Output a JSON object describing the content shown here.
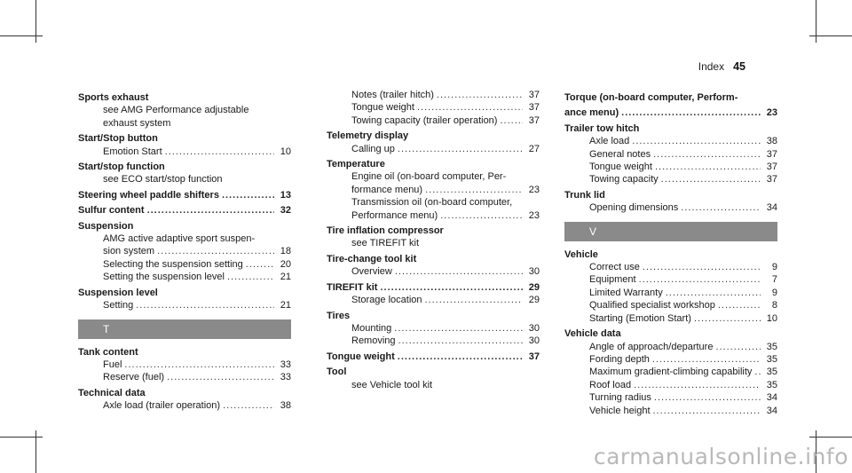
{
  "header": {
    "section": "Index",
    "page": "45"
  },
  "columns": [
    [
      {
        "kind": "head",
        "text": "Sports exhaust"
      },
      {
        "kind": "sub",
        "text": "see AMG Performance adjustable"
      },
      {
        "kind": "sub",
        "text": "exhaust system"
      },
      {
        "kind": "head",
        "text": "Start/Stop button"
      },
      {
        "kind": "subpage",
        "text": "Emotion Start",
        "page": "10"
      },
      {
        "kind": "head",
        "text": "Start/stop function"
      },
      {
        "kind": "sub",
        "text": "see ECO start/stop function"
      },
      {
        "kind": "headpage",
        "text": "Steering wheel paddle shifters",
        "page": "13"
      },
      {
        "kind": "headpage",
        "text": "Sulfur content",
        "page": "32"
      },
      {
        "kind": "head",
        "text": "Suspension"
      },
      {
        "kind": "sub",
        "text": "AMG active adaptive sport suspen-"
      },
      {
        "kind": "subpage",
        "text": "sion system",
        "page": "18"
      },
      {
        "kind": "subpage",
        "text": "Selecting the suspension setting",
        "page": "20"
      },
      {
        "kind": "subpage",
        "text": "Setting the suspension level",
        "page": "21"
      },
      {
        "kind": "head",
        "text": "Suspension level"
      },
      {
        "kind": "subpage",
        "text": "Setting",
        "page": "21"
      },
      {
        "kind": "letter",
        "text": "T"
      },
      {
        "kind": "head",
        "text": "Tank content"
      },
      {
        "kind": "subpage",
        "text": "Fuel",
        "page": "33"
      },
      {
        "kind": "subpage",
        "text": "Reserve (fuel)",
        "page": "33"
      },
      {
        "kind": "head",
        "text": "Technical data"
      },
      {
        "kind": "subpage",
        "text": "Axle load (trailer operation)",
        "page": "38"
      }
    ],
    [
      {
        "kind": "subpage",
        "text": "Notes (trailer hitch)",
        "page": "37"
      },
      {
        "kind": "subpage",
        "text": "Tongue weight",
        "page": "37"
      },
      {
        "kind": "subpage",
        "text": "Towing capacity (trailer operation)",
        "page": "37"
      },
      {
        "kind": "head",
        "text": "Telemetry display"
      },
      {
        "kind": "subpage",
        "text": "Calling up",
        "page": "27"
      },
      {
        "kind": "head",
        "text": "Temperature"
      },
      {
        "kind": "sub",
        "text": "Engine oil (on-board computer, Per-"
      },
      {
        "kind": "subpage",
        "text": "formance menu)",
        "page": "23"
      },
      {
        "kind": "sub",
        "text": "Transmission oil (on-board computer,"
      },
      {
        "kind": "subpage",
        "text": "Performance menu)",
        "page": "23"
      },
      {
        "kind": "head",
        "text": "Tire inflation compressor"
      },
      {
        "kind": "sub",
        "text": "see TIREFIT kit"
      },
      {
        "kind": "head",
        "text": "Tire-change tool kit"
      },
      {
        "kind": "subpage",
        "text": "Overview",
        "page": "30"
      },
      {
        "kind": "headpage",
        "text": "TIREFIT kit",
        "page": "29"
      },
      {
        "kind": "subpage",
        "text": "Storage location",
        "page": "29"
      },
      {
        "kind": "head",
        "text": "Tires"
      },
      {
        "kind": "subpage",
        "text": "Mounting",
        "page": "30"
      },
      {
        "kind": "subpage",
        "text": "Removing",
        "page": "30"
      },
      {
        "kind": "headpage",
        "text": "Tongue weight",
        "page": "37"
      },
      {
        "kind": "head",
        "text": "Tool"
      },
      {
        "kind": "sub",
        "text": "see Vehicle tool kit"
      }
    ],
    [
      {
        "kind": "head",
        "text": "Torque (on-board computer, Perform-"
      },
      {
        "kind": "headpage",
        "text": "ance menu)",
        "page": "23"
      },
      {
        "kind": "head",
        "text": "Trailer tow hitch"
      },
      {
        "kind": "subpage",
        "text": "Axle load",
        "page": "38"
      },
      {
        "kind": "subpage",
        "text": "General notes",
        "page": "37"
      },
      {
        "kind": "subpage",
        "text": "Tongue weight",
        "page": "37"
      },
      {
        "kind": "subpage",
        "text": "Towing capacity",
        "page": "37"
      },
      {
        "kind": "head",
        "text": "Trunk lid"
      },
      {
        "kind": "subpage",
        "text": "Opening dimensions",
        "page": "34"
      },
      {
        "kind": "letter",
        "text": "V"
      },
      {
        "kind": "head",
        "text": "Vehicle"
      },
      {
        "kind": "subpage",
        "text": "Correct use",
        "page": "9"
      },
      {
        "kind": "subpage",
        "text": "Equipment",
        "page": "7"
      },
      {
        "kind": "subpage",
        "text": "Limited Warranty",
        "page": "9"
      },
      {
        "kind": "subpage",
        "text": "Qualified specialist workshop",
        "page": "8"
      },
      {
        "kind": "subpage",
        "text": "Starting (Emotion Start)",
        "page": "10"
      },
      {
        "kind": "head",
        "text": "Vehicle data"
      },
      {
        "kind": "subpage",
        "text": "Angle of approach/departure",
        "page": "35"
      },
      {
        "kind": "subpage",
        "text": "Fording depth",
        "page": "35"
      },
      {
        "kind": "subpage",
        "text": "Maximum gradient-climbing capability",
        "page": "35"
      },
      {
        "kind": "subpage",
        "text": "Roof load",
        "page": "35"
      },
      {
        "kind": "subpage",
        "text": "Turning radius",
        "page": "34"
      },
      {
        "kind": "subpage",
        "text": "Vehicle height",
        "page": "34"
      }
    ]
  ],
  "watermark": "carmanualsonline.info"
}
